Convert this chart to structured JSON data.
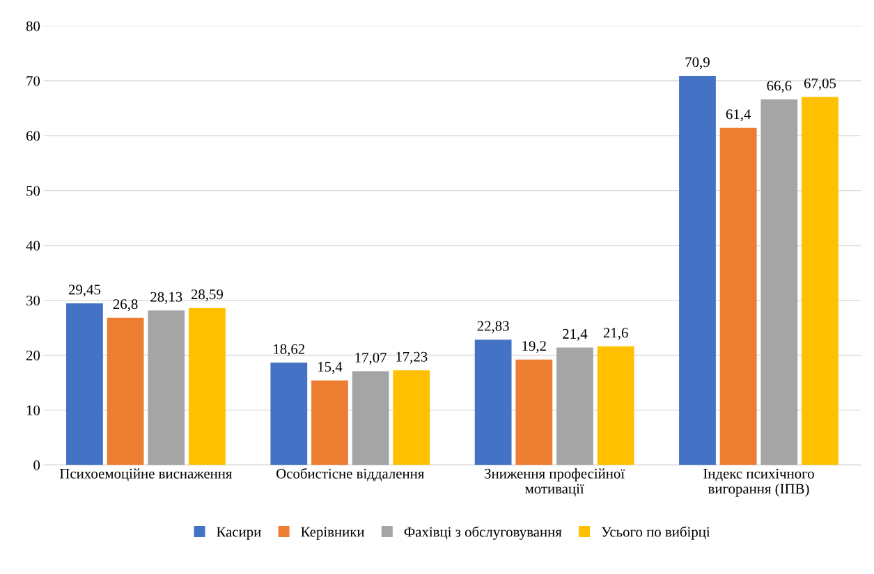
{
  "chart_data": {
    "type": "bar",
    "categories": [
      "Психоемоційне виснаження",
      "Особистісне віддалення",
      "Зниження професійної\nмотивації",
      "Індекс психічного\nвигорання (ІПВ)"
    ],
    "series": [
      {
        "name": "Касири",
        "color": "#4472c4",
        "values": [
          29.45,
          18.62,
          22.83,
          70.9
        ],
        "value_labels": [
          "29,45",
          "18,62",
          "22,83",
          "70,9"
        ]
      },
      {
        "name": "Керівники",
        "color": "#ed7d31",
        "values": [
          26.8,
          15.4,
          19.2,
          61.4
        ],
        "value_labels": [
          "26,8",
          "15,4",
          "19,2",
          "61,4"
        ]
      },
      {
        "name": "Фахівці з обслуговування",
        "color": "#a5a5a5",
        "values": [
          28.13,
          17.07,
          21.4,
          66.6
        ],
        "value_labels": [
          "28,13",
          "17,07",
          "21,4",
          "66,6"
        ]
      },
      {
        "name": "Усього по вибірці",
        "color": "#ffc000",
        "values": [
          28.59,
          17.23,
          21.6,
          67.05
        ],
        "value_labels": [
          "28,59",
          "17,23",
          "21,6",
          "67,05"
        ]
      }
    ],
    "ylim": [
      0,
      80
    ],
    "yticks": [
      0,
      10,
      20,
      30,
      40,
      50,
      60,
      70,
      80
    ],
    "grid": "y",
    "legend": "bottom"
  }
}
